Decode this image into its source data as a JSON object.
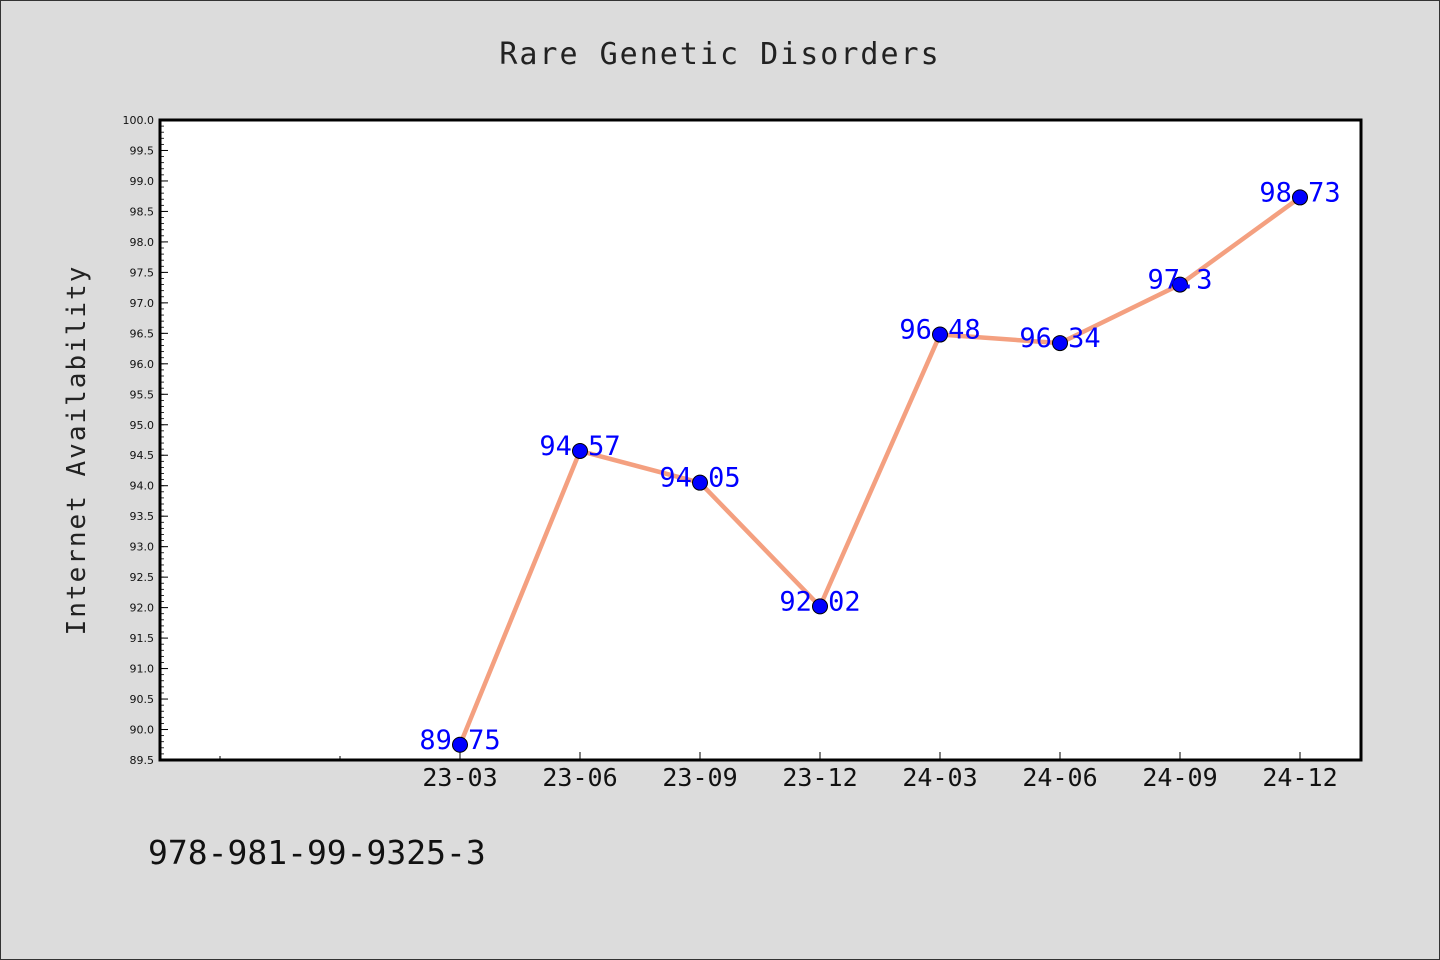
{
  "chart_data": {
    "type": "line",
    "title": "Rare Genetic Disorders",
    "xlabel": "",
    "ylabel": "Internet Availability",
    "categories": [
      "23-03",
      "23-06",
      "23-09",
      "23-12",
      "24-03",
      "24-06",
      "24-09",
      "24-12"
    ],
    "values": [
      89.75,
      94.57,
      94.05,
      92.02,
      96.48,
      96.34,
      97.3,
      98.73
    ],
    "data_labels": [
      "89.75",
      "94.57",
      "94.05",
      "92.02",
      "96.48",
      "96.34",
      "97.3",
      "98.73"
    ],
    "ylim": [
      89.5,
      100.0
    ],
    "yticks": [
      "89.5",
      "90.0",
      "90.5",
      "91.0",
      "91.5",
      "92.0",
      "92.5",
      "93.0",
      "93.5",
      "94.0",
      "94.5",
      "95.0",
      "95.5",
      "96.0",
      "96.5",
      "97.0",
      "97.5",
      "98.0",
      "98.5",
      "99.0",
      "99.5",
      "100.0"
    ],
    "grid": false,
    "legend": "none",
    "line_color": "#f4a080",
    "marker_color": "#0000ff",
    "label_color": "#0000ff"
  },
  "footer": {
    "isbn": "978-981-99-9325-3"
  }
}
